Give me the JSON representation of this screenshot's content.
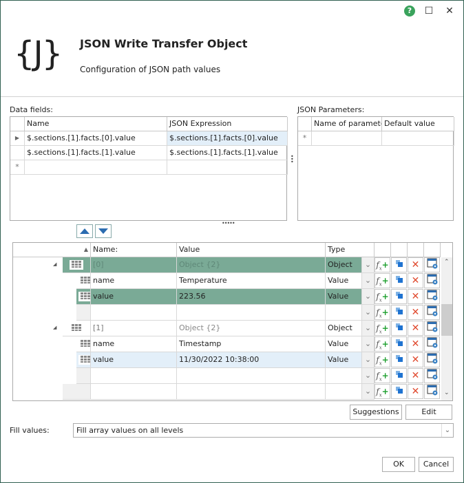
{
  "window": {
    "help_icon": "help-icon",
    "maximize_icon": "maximize-icon",
    "close_icon": "close-icon"
  },
  "header": {
    "logo": "{J}",
    "title": "JSON Write Transfer Object",
    "subtitle": "Configuration of JSON path values"
  },
  "data_fields": {
    "label": "Data fields:",
    "columns": [
      "Name",
      "JSON Expression"
    ],
    "rows": [
      {
        "name": "$.sections.[1].facts.[0].value",
        "expr": "$.sections.[1].facts.[0].value"
      },
      {
        "name": "$.sections.[1].facts.[1].value",
        "expr": "$.sections.[1].facts.[1].value"
      }
    ]
  },
  "json_params": {
    "label": "JSON Parameters:",
    "columns": [
      "Name of parameter",
      "Default value"
    ]
  },
  "tree": {
    "columns": [
      "Name:",
      "Value",
      "Type"
    ],
    "rows": [
      {
        "level": 0,
        "name": "[0]",
        "value": "Object {2}",
        "type": "Object",
        "state": "green",
        "muted": true
      },
      {
        "level": 1,
        "name": "name",
        "value": "Temperature",
        "type": "Value",
        "state": ""
      },
      {
        "level": 1,
        "name": "value",
        "value": "223.56",
        "type": "Value",
        "state": "green"
      },
      {
        "level": 1,
        "name": "",
        "value": "",
        "type": "",
        "state": "newrow"
      },
      {
        "level": 0,
        "name": "[1]",
        "value": "Object {2}",
        "type": "Object",
        "state": "",
        "muted_value": true
      },
      {
        "level": 1,
        "name": "name",
        "value": "Timestamp",
        "type": "Value",
        "state": ""
      },
      {
        "level": 1,
        "name": "value",
        "value": "11/30/2022 10:38:00",
        "type": "Value",
        "state": "blue"
      },
      {
        "level": 1,
        "name": "",
        "value": "",
        "type": "",
        "state": "newrow"
      },
      {
        "level": 0,
        "name": "",
        "value": "",
        "type": "",
        "state": "newrow"
      }
    ]
  },
  "buttons": {
    "suggestions": "Suggestions",
    "edit": "Edit",
    "ok": "OK",
    "cancel": "Cancel"
  },
  "fill": {
    "label": "Fill values:",
    "value": "Fill array values on all levels"
  },
  "colors": {
    "selected_row": "#7aaa96",
    "focused_row": "#e3eff9",
    "border": "#2f5e50"
  }
}
